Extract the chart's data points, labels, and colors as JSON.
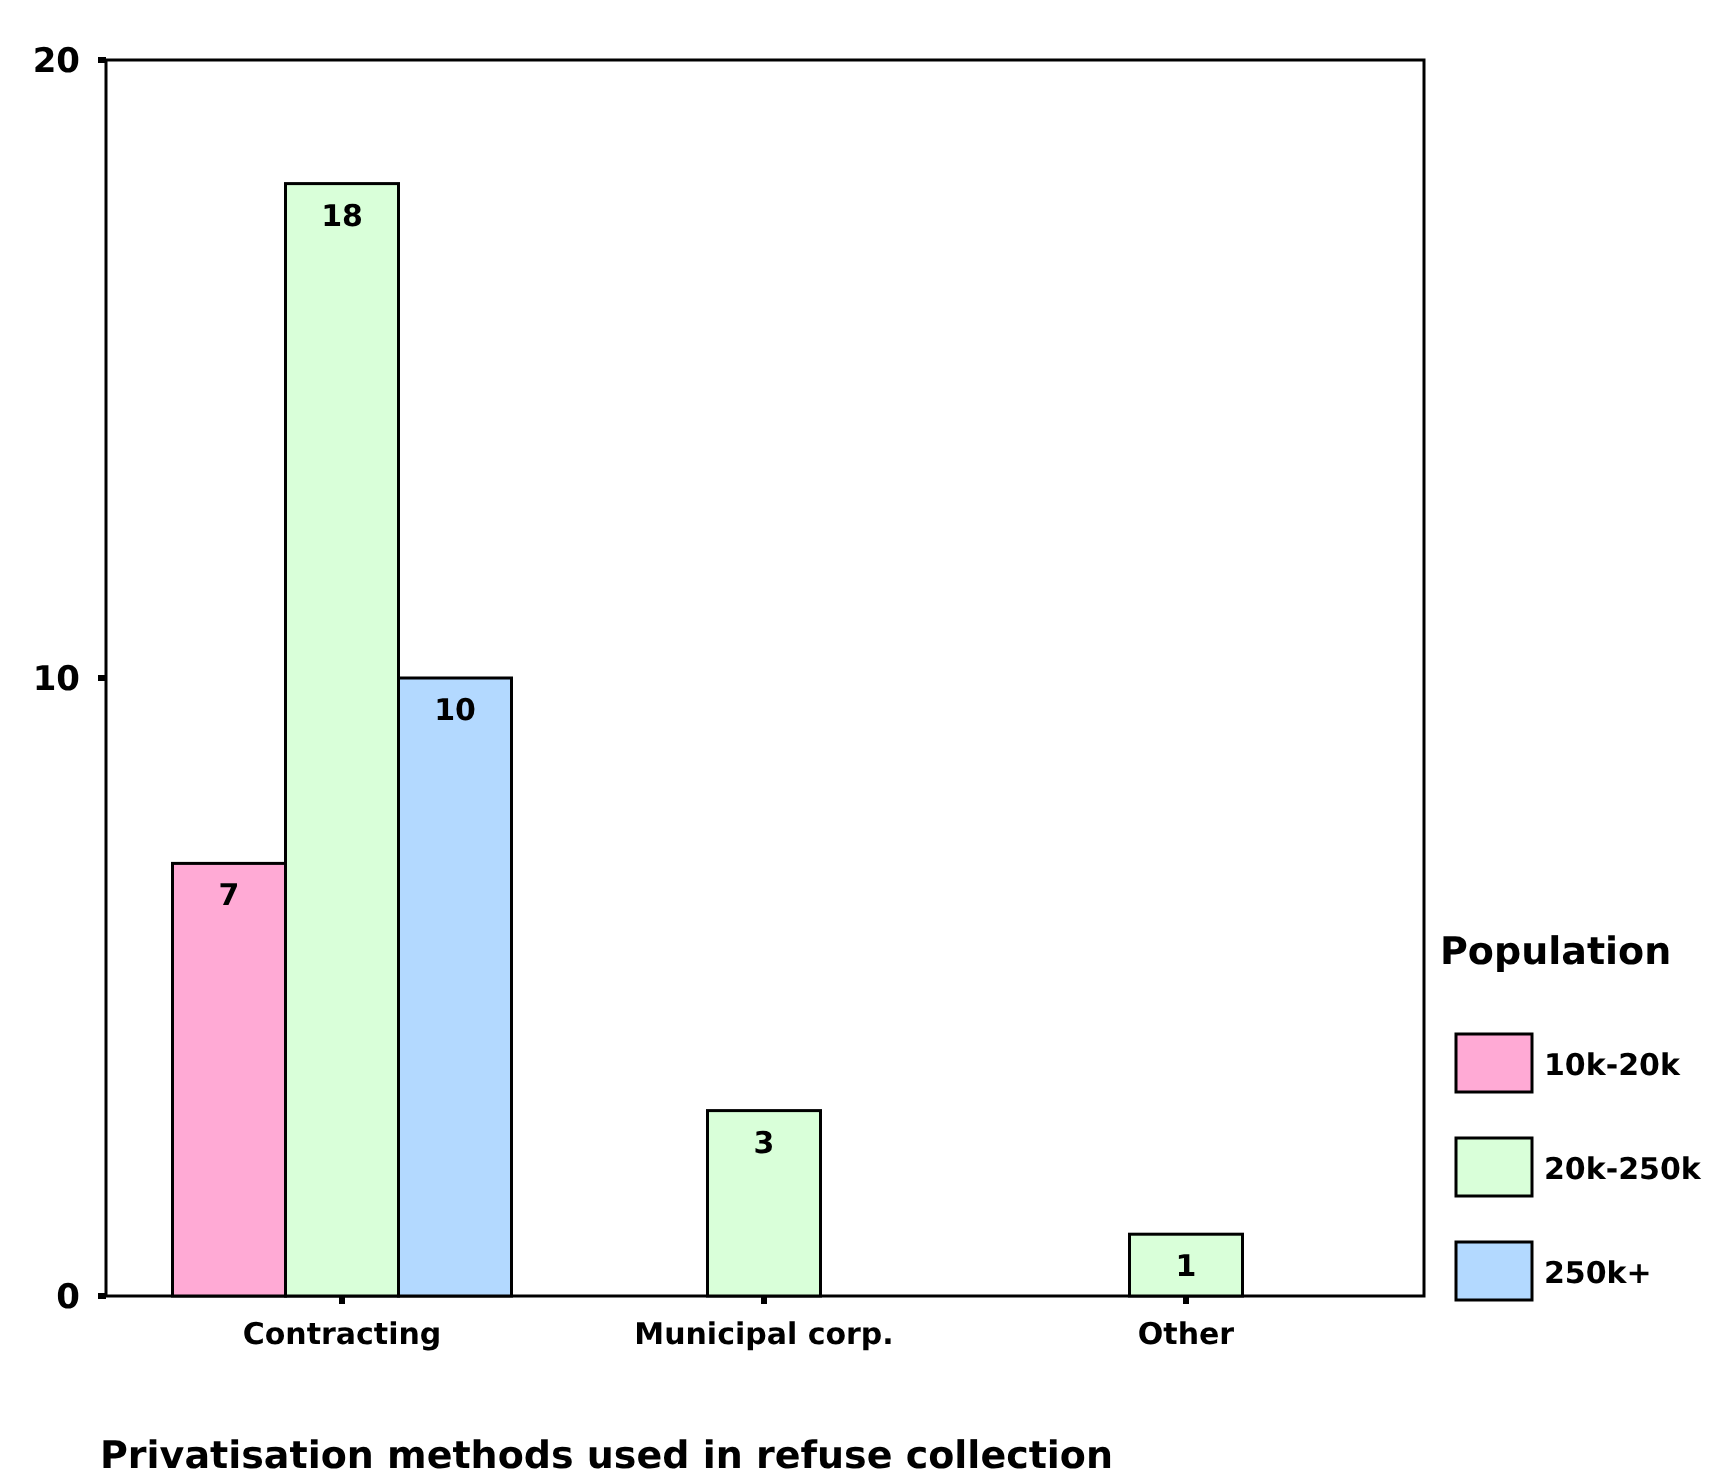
{
  "chart_data": {
    "type": "bar",
    "xlabel": "Privatisation methods used in refuse collection",
    "legend_title": "Population",
    "categories": [
      "Contracting",
      "Municipal corp.",
      "Other"
    ],
    "series": [
      {
        "name": "10k-20k",
        "color": "#ffaad5",
        "values": [
          7,
          null,
          null
        ]
      },
      {
        "name": "20k-250k",
        "color": "#d9ffd9",
        "values": [
          18,
          3,
          1
        ]
      },
      {
        "name": "250k+",
        "color": "#b3d9ff",
        "values": [
          10,
          null,
          null
        ]
      }
    ],
    "ylim": [
      0,
      20
    ],
    "yticks": [
      0,
      10,
      20
    ],
    "data_labels": true,
    "legend": "right",
    "grid": false
  }
}
